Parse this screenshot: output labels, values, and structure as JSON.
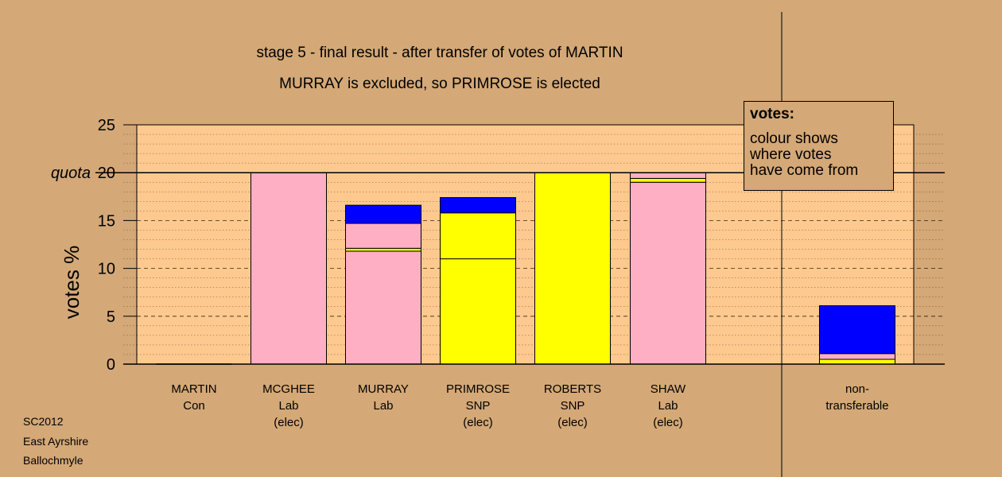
{
  "source": {
    "line1": "SC2012",
    "line2": "East Ayrshire",
    "line3": "Ballochmyle"
  },
  "legend": {
    "title": "votes:",
    "line1": "colour shows",
    "line2": "where votes",
    "line3": "have come from"
  },
  "colors": {
    "background": "#d4a877",
    "plot_area": "#fdc98e",
    "Lab": "#ffafc4",
    "SNP": "#ffff00",
    "Con": "#0000ff",
    "nontransferable": "#0000ff"
  },
  "chart_data": {
    "type": "bar",
    "stacked": true,
    "title": "stage 5 - final result - after transfer of votes of MARTIN",
    "subtitle": "MURRAY is excluded, so PRIMROSE is elected",
    "ylabel": "votes %",
    "ylim": [
      0,
      25
    ],
    "yticks": [
      0,
      5,
      10,
      15,
      20,
      25
    ],
    "quota": 20,
    "quota_label": "quota",
    "grid": "dotted minor lines, dashed major lines",
    "categories": [
      {
        "name": "MARTIN",
        "party": "Con",
        "status": ""
      },
      {
        "name": "MCGHEE",
        "party": "Lab",
        "status": "(elec)"
      },
      {
        "name": "MURRAY",
        "party": "Lab",
        "status": ""
      },
      {
        "name": "PRIMROSE",
        "party": "SNP",
        "status": "(elec)"
      },
      {
        "name": "ROBERTS",
        "party": "SNP",
        "status": "(elec)"
      },
      {
        "name": "SHAW",
        "party": "Lab",
        "status": "(elec)"
      }
    ],
    "stacks": [
      [],
      [
        {
          "source": "Lab",
          "value": 20
        }
      ],
      [
        {
          "source": "Lab",
          "value": 11.8
        },
        {
          "source": "SNP",
          "value": 0.3
        },
        {
          "source": "Lab",
          "value": 2.6
        },
        {
          "source": "Con",
          "value": 1.9
        }
      ],
      [
        {
          "source": "SNP",
          "value": 11.0
        },
        {
          "source": "SNP",
          "value": 4.8
        },
        {
          "source": "Con",
          "value": 1.6
        }
      ],
      [
        {
          "source": "SNP",
          "value": 20
        }
      ],
      [
        {
          "source": "Lab",
          "value": 19.0
        },
        {
          "source": "SNP",
          "value": 0.4
        },
        {
          "source": "Lab",
          "value": 0.6
        }
      ]
    ],
    "nontransferable": {
      "label_line1": "non-",
      "label_line2": "transferable",
      "stack": [
        {
          "source": "SNP",
          "value": 0.5
        },
        {
          "source": "Lab",
          "value": 0.6
        },
        {
          "source": "Con",
          "value": 5.0
        }
      ]
    }
  }
}
